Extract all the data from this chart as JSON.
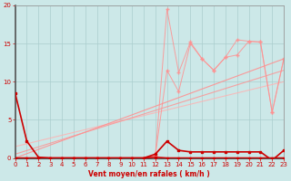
{
  "x": [
    0,
    1,
    2,
    3,
    4,
    5,
    6,
    7,
    8,
    9,
    10,
    11,
    12,
    13,
    14,
    15,
    16,
    17,
    18,
    19,
    20,
    21,
    22,
    23
  ],
  "line_dark1": [
    8.5,
    2.2,
    0.1,
    0.0,
    0.0,
    0.0,
    0.0,
    0.0,
    0.0,
    0.0,
    0.0,
    0.0,
    0.1,
    0.0,
    0.0,
    0.0,
    0.0,
    0.0,
    0.0,
    0.0,
    0.0,
    0.0,
    0.0,
    0.0
  ],
  "line_dark2": [
    0.0,
    0.0,
    0.0,
    0.0,
    0.0,
    0.0,
    0.0,
    0.0,
    0.0,
    0.0,
    0.0,
    0.0,
    0.5,
    2.2,
    1.0,
    0.8,
    0.8,
    0.8,
    0.8,
    0.8,
    0.8,
    0.8,
    -0.3,
    1.0
  ],
  "line_jagged": [
    0.0,
    0.0,
    0.0,
    0.0,
    0.0,
    0.0,
    0.0,
    0.0,
    0.0,
    0.0,
    0.0,
    0.0,
    0.3,
    19.5,
    11.2,
    15.2,
    13.0,
    11.5,
    13.2,
    15.5,
    15.3,
    15.2,
    6.0,
    13.0
  ],
  "line_jagged2": [
    0.0,
    0.0,
    0.0,
    0.0,
    0.0,
    0.0,
    0.0,
    0.0,
    0.0,
    0.0,
    0.0,
    0.0,
    0.3,
    11.5,
    8.7,
    15.0,
    13.0,
    11.5,
    13.2,
    13.5,
    15.3,
    15.2,
    6.0,
    13.0
  ],
  "trend1_x": [
    0,
    23
  ],
  "trend1_y": [
    0.0,
    13.0
  ],
  "trend2_x": [
    0,
    23
  ],
  "trend2_y": [
    0.5,
    11.5
  ],
  "trend3_x": [
    0,
    23
  ],
  "trend3_y": [
    1.5,
    10.0
  ],
  "bg_color": "#cce8e8",
  "grid_color": "#aacece",
  "dark_red": "#cc0000",
  "light_red1": "#ff9090",
  "light_red2": "#ffb0b0",
  "xlabel": "Vent moyen/en rafales ( km/h )",
  "ylim": [
    0,
    20
  ],
  "xlim": [
    0,
    23
  ],
  "yticks": [
    0,
    5,
    10,
    15,
    20
  ],
  "xticks": [
    0,
    1,
    2,
    3,
    4,
    5,
    6,
    7,
    8,
    9,
    10,
    11,
    12,
    13,
    14,
    15,
    16,
    17,
    18,
    19,
    20,
    21,
    22,
    23
  ]
}
